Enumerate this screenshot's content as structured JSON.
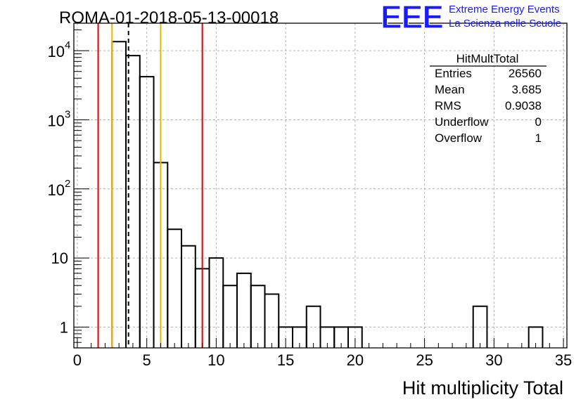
{
  "chart_data": {
    "type": "bar",
    "title": "ROMA-01-2018-05-13-00018",
    "xlabel": "Hit multiplicity Total",
    "ylabel": "",
    "x_ticks": [
      "0",
      "5",
      "10",
      "15",
      "20",
      "25",
      "30",
      "35"
    ],
    "y_ticks": [
      {
        "base": "10",
        "exp": "4"
      },
      {
        "base": "10",
        "exp": "3"
      },
      {
        "base": "10",
        "exp": "2"
      },
      {
        "base": "10",
        "exp": ""
      },
      {
        "base": "1",
        "exp": ""
      }
    ],
    "xlim": [
      -0.25,
      35.25
    ],
    "ylim": [
      0.5,
      25000
    ],
    "y_scale": "log",
    "grid": true,
    "bin_width": 1,
    "bins": [
      {
        "x0": 2.5,
        "value": 13500
      },
      {
        "x0": 3.5,
        "value": 8500
      },
      {
        "x0": 4.5,
        "value": 4200
      },
      {
        "x0": 5.5,
        "value": 240
      },
      {
        "x0": 6.5,
        "value": 26
      },
      {
        "x0": 7.5,
        "value": 15
      },
      {
        "x0": 8.5,
        "value": 7
      },
      {
        "x0": 9.5,
        "value": 10
      },
      {
        "x0": 10.5,
        "value": 4
      },
      {
        "x0": 11.5,
        "value": 6
      },
      {
        "x0": 12.5,
        "value": 4
      },
      {
        "x0": 13.5,
        "value": 3
      },
      {
        "x0": 14.5,
        "value": 1
      },
      {
        "x0": 15.5,
        "value": 1
      },
      {
        "x0": 16.5,
        "value": 2
      },
      {
        "x0": 17.5,
        "value": 1
      },
      {
        "x0": 18.5,
        "value": 1
      },
      {
        "x0": 19.5,
        "value": 1
      },
      {
        "x0": 28.5,
        "value": 2
      },
      {
        "x0": 32.5,
        "value": 1
      }
    ],
    "vertical_lines": [
      {
        "x": 1.5,
        "color": "#dd0000",
        "style": "solid"
      },
      {
        "x": 2.5,
        "color": "#f0b400",
        "style": "solid"
      },
      {
        "x": 3.685,
        "color": "#000000",
        "style": "dashed"
      },
      {
        "x": 6.0,
        "color": "#f0b400",
        "style": "solid"
      },
      {
        "x": 9.0,
        "color": "#dd0000",
        "style": "solid"
      }
    ],
    "stats_box": {
      "title": "HitMultTotal",
      "rows": [
        {
          "label": "Entries",
          "value": "26560"
        },
        {
          "label": "Mean",
          "value": "3.685"
        },
        {
          "label": "RMS",
          "value": "0.9038"
        },
        {
          "label": "Underflow",
          "value": "0"
        },
        {
          "label": "Overflow",
          "value": "1"
        }
      ]
    }
  },
  "logo": {
    "text": "EEE",
    "line1": "Extreme Energy Events",
    "line2": "La Scienza nelle Scuole",
    "color": "#1a1aff"
  }
}
